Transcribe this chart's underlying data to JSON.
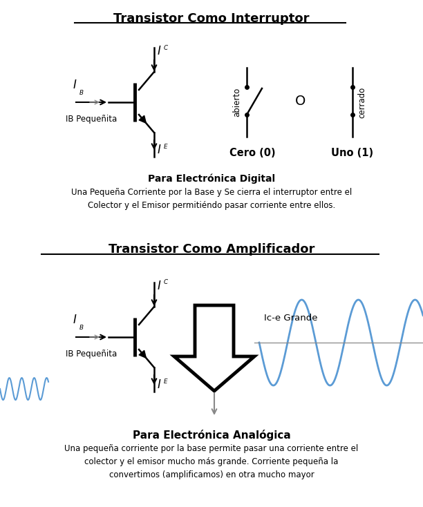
{
  "title1": "Transistor Como Interruptor",
  "title2": "Transistor Como Amplificador",
  "subtitle1": "Para Electrónica Digital",
  "subtitle2": "Para Electrónica Analógica",
  "desc1": "Una Pequeña Corriente por la Base y Se cierra el interruptor entre el\nColector y el Emisor permitiéndo pasar corriente entre ellos.",
  "desc2": "Una pequeña corriente por la base permite pasar una corriente entre el\ncolector y el emisor mucho más grande. Corriente pequeña la\nconvertimos (amplificamos) en otra mucho mayor",
  "label_IB_small": "IB Pequeñita",
  "label_abierto": "abierto",
  "label_cerrado": "cerrado",
  "label_O": "O",
  "label_cero": "Cero (0)",
  "label_uno": "Uno (1)",
  "label_Ic_grande": "Ic-e Grande",
  "bg_color": "#ffffff",
  "line_color": "#000000",
  "blue_color": "#5b9bd5",
  "gray_color": "#888888"
}
